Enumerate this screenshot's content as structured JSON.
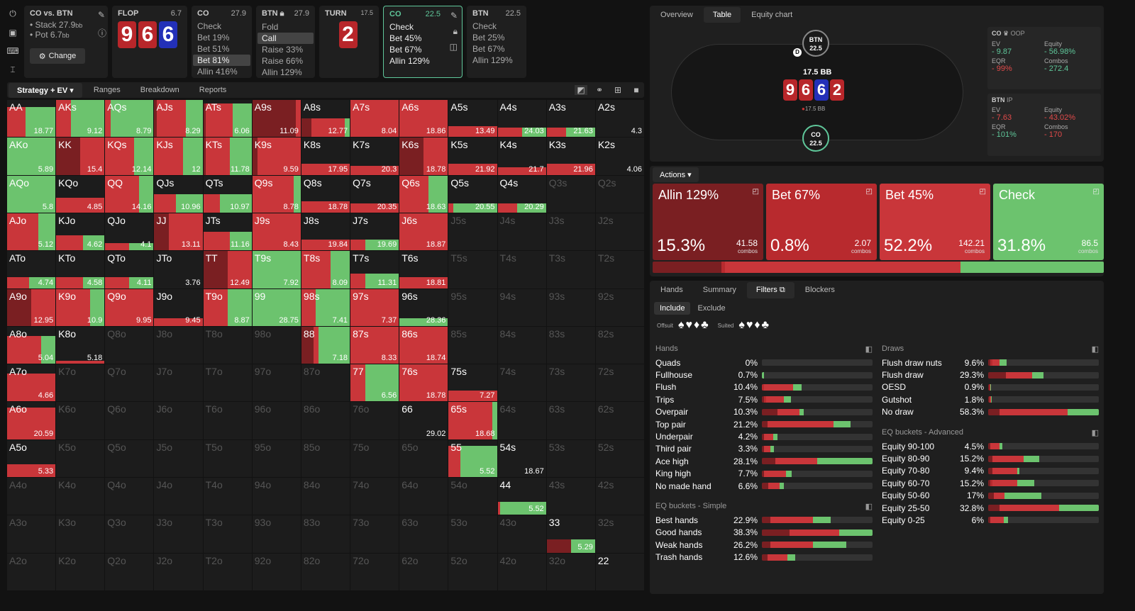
{
  "colors": {
    "red": "#c9363a",
    "darkred": "#7a1f22",
    "green": "#6cc36e",
    "bg": "#1c1c1c"
  },
  "left_tools": [
    "power-icon",
    "save-icon",
    "gamepad-icon",
    "text-cursor-icon"
  ],
  "spot_summary": {
    "title": "CO vs. BTN",
    "stack_label": "Stack",
    "stack": "27.9",
    "pot_label": "Pot",
    "pot": "6.7",
    "bb": "bb",
    "change": "Change"
  },
  "flop": {
    "label": "FLOP",
    "size": "6.7",
    "cards": [
      "9",
      "6",
      "6"
    ]
  },
  "co_flop": {
    "pos": "CO",
    "size": "27.9",
    "lines": [
      "Check",
      "Bet 19%",
      "Bet 51%",
      "Bet 81%",
      "Allin 416%"
    ]
  },
  "btn_flop": {
    "pos": "BTN",
    "size": "27.9",
    "lines": [
      "Fold",
      "Call",
      "Raise 33%",
      "Raise 66%",
      "Allin 129%"
    ]
  },
  "turn": {
    "label": "TURN",
    "size": "17.5",
    "card": "2"
  },
  "co_turn": {
    "pos": "CO",
    "size": "22.5",
    "lines": [
      "Check",
      "Bet 45%",
      "Bet 67%",
      "Allin 129%"
    ]
  },
  "btn_turn": {
    "pos": "BTN",
    "size": "22.5",
    "lines": [
      "Check",
      "Bet 25%",
      "Bet 67%",
      "Allin 129%"
    ]
  },
  "strategy_tabs": [
    "Strategy + EV",
    "Ranges",
    "Breakdown",
    "Reports"
  ],
  "right_tabs": [
    "Overview",
    "Table",
    "Equity chart"
  ],
  "table": {
    "btn": "BTN",
    "btn_stack": "22.5",
    "co": "CO",
    "co_stack": "22.5",
    "pot": "17.5 BB",
    "board": [
      "9",
      "6",
      "6",
      "2"
    ],
    "chips": "17.5 BB",
    "dealer": "D"
  },
  "co_stats": {
    "pos": "CO",
    "role": "OOP",
    "ev_label": "EV",
    "ev": "- 9.87",
    "eq_label": "Equity",
    "eq": "- 56.98%",
    "eqr_label": "EQR",
    "eqr": "- 99%",
    "combos_label": "Combos",
    "combos": "- 272.4"
  },
  "btn_stats": {
    "pos": "BTN",
    "role": "IP",
    "ev_label": "EV",
    "ev": "- 7.63",
    "eq_label": "Equity",
    "eq": "- 43.02%",
    "eqr_label": "EQR",
    "eqr": "- 101%",
    "combos_label": "Combos",
    "combos": "- 170"
  },
  "actions_label": "Actions",
  "actions": [
    {
      "name": "Allin 129%",
      "pct": "15.3%",
      "combos": "41.58",
      "color": "#7a1f22",
      "frac": 0.153
    },
    {
      "name": "Bet 67%",
      "pct": "0.8%",
      "combos": "2.07",
      "color": "#b82a2e",
      "frac": 0.008
    },
    {
      "name": "Bet 45%",
      "pct": "52.2%",
      "combos": "142.21",
      "color": "#c9363a",
      "frac": 0.522
    },
    {
      "name": "Check",
      "pct": "31.8%",
      "combos": "86.5",
      "color": "#6cc36e",
      "frac": 0.318
    }
  ],
  "combos_word": "combos",
  "filter_tabs": [
    "Hands",
    "Summary",
    "Filters",
    "Blockers"
  ],
  "include": "Include",
  "exclude": "Exclude",
  "offsuit": "Offsuit",
  "suited": "Suited",
  "hands_title": "Hands",
  "hands": [
    {
      "l": "Quads",
      "p": "0%",
      "b": [
        0,
        0,
        0,
        0
      ]
    },
    {
      "l": "Fullhouse",
      "p": "0.7%",
      "b": [
        0,
        0,
        0,
        0.02
      ]
    },
    {
      "l": "Flush",
      "p": "10.4%",
      "b": [
        0,
        0.02,
        0.26,
        0.08
      ]
    },
    {
      "l": "Trips",
      "p": "7.5%",
      "b": [
        0.02,
        0.02,
        0.16,
        0.06
      ]
    },
    {
      "l": "Overpair",
      "p": "10.3%",
      "b": [
        0.14,
        0,
        0.2,
        0.04
      ]
    },
    {
      "l": "Top pair",
      "p": "21.2%",
      "b": [
        0.05,
        0,
        0.6,
        0.15
      ]
    },
    {
      "l": "Underpair",
      "p": "4.2%",
      "b": [
        0.02,
        0,
        0.08,
        0.04
      ]
    },
    {
      "l": "Third pair",
      "p": "3.3%",
      "b": [
        0.02,
        0,
        0.06,
        0.03
      ]
    },
    {
      "l": "Ace high",
      "p": "28.1%",
      "b": [
        0.12,
        0,
        0.38,
        0.5
      ]
    },
    {
      "l": "King high",
      "p": "7.7%",
      "b": [
        0.02,
        0,
        0.2,
        0.05
      ]
    },
    {
      "l": "No made hand",
      "p": "6.6%",
      "b": [
        0.06,
        0,
        0.1,
        0.04
      ]
    }
  ],
  "eq_simple_title": "EQ buckets - Simple",
  "eq_simple": [
    {
      "l": "Best hands",
      "p": "22.9%",
      "b": [
        0.08,
        0,
        0.38,
        0.16
      ]
    },
    {
      "l": "Good hands",
      "p": "38.3%",
      "b": [
        0.25,
        0,
        0.45,
        0.3
      ]
    },
    {
      "l": "Weak hands",
      "p": "26.2%",
      "b": [
        0.08,
        0,
        0.38,
        0.3
      ]
    },
    {
      "l": "Trash hands",
      "p": "12.6%",
      "b": [
        0.05,
        0,
        0.18,
        0.07
      ]
    }
  ],
  "draws_title": "Draws",
  "draws": [
    {
      "l": "Flush draw nuts",
      "p": "9.6%",
      "b": [
        0.02,
        0.02,
        0.06,
        0.07
      ]
    },
    {
      "l": "Flush draw",
      "p": "29.3%",
      "b": [
        0.16,
        0,
        0.24,
        0.1
      ]
    },
    {
      "l": "OESD",
      "p": "0.9%",
      "b": [
        0.01,
        0,
        0.01,
        0.005
      ]
    },
    {
      "l": "Gutshot",
      "p": "1.8%",
      "b": [
        0.01,
        0,
        0.015,
        0.005
      ]
    },
    {
      "l": "No draw",
      "p": "58.3%",
      "b": [
        0.1,
        0,
        0.62,
        0.28
      ]
    }
  ],
  "eq_adv_title": "EQ buckets - Advanced",
  "eq_adv": [
    {
      "l": "Equity 90-100",
      "p": "4.5%",
      "b": [
        0.02,
        0,
        0.08,
        0.03
      ]
    },
    {
      "l": "Equity 80-90",
      "p": "15.2%",
      "b": [
        0.04,
        0,
        0.28,
        0.14
      ]
    },
    {
      "l": "Equity 70-80",
      "p": "9.4%",
      "b": [
        0.04,
        0,
        0.22,
        0.02
      ]
    },
    {
      "l": "Equity 60-70",
      "p": "15.2%",
      "b": [
        0.02,
        0.02,
        0.22,
        0.16
      ]
    },
    {
      "l": "Equity 50-60",
      "p": "17%",
      "b": [
        0.05,
        0,
        0.1,
        0.33
      ]
    },
    {
      "l": "Equity 25-50",
      "p": "32.8%",
      "b": [
        0.1,
        0,
        0.54,
        0.36
      ]
    },
    {
      "l": "Equity 0-25",
      "p": "6%",
      "b": [
        0.02,
        0,
        0.12,
        0.04
      ]
    }
  ],
  "grid": [
    [
      "AA|18.77|0,0,0.38,0.62|0.8",
      "AKs|9.12|0,0,0.3,0.7|1",
      "AQs|8.79|0,0,0.12,0.88|1",
      "AJs|8.29|0.05,0,0.6,0.35|1",
      "ATs|6.06|0.05,0,0.55,0.4|0.9",
      "A9s|11.09|0.9,0,0.1,0|1",
      "A8s|12.77|0.2,0,0.7,0.1|0.5",
      "A7s|8.04|0,0,1,0|1",
      "A6s|18.86|0,0,1,0|1",
      "A5s|13.49|0,0,1,0|0.3",
      "A4s|24.03|0,0,0.5,0.5|0.25",
      "A3s|21.63|0,0,0.4,0.6|0.25",
      "A2s|4.3|0,0,0,0|0"
    ],
    [
      "AKo|5.89|0,0,0,1|1",
      "KK|15.4|0.5,0,0.5,0|1",
      "KQs|12.14|0,0,0.6,0.4|1",
      "KJs|12|0,0,0.6,0.4|1",
      "KTs|11.78|0.05,0,0.5,0.45|1",
      "K9s|9.59|0.1,0,0.9,0|1",
      "K8s|17.95|0,0,1,0|0.3",
      "K7s|20.3|0,0,1,0|0.25",
      "K6s|18.78|0.5,0,0.5,0|1",
      "K5s|21.92|0,0,1,0|0.3",
      "K4s|21.7|0,0,1,0|0.2",
      "K3s|21.96|0,0,1,0|0.3",
      "K2s|4.06|0,0,0,0|0"
    ],
    [
      "AQo|5.8|0,0,0,1|1",
      "KQo|4.85|0,0,1,0|0.4",
      "QQ|14.16|0,0,0.7,0.3|1",
      "QJs|10.96|0,0,0.45,0.55|0.5",
      "QTs|10.97|0,0,0.35,0.65|0.5",
      "Q9s|8.78|0,0,0.85,0.15|1",
      "Q8s|18.78|0,0,1,0|0.3",
      "Q7s|20.35|0,0,1,0|0.25",
      "Q6s|18.63|0,0,0.6,0.4|1",
      "Q5s|20.55|0,0,0.1,0.9|0.25",
      "Q4s|20.29|0,0,0.4,0.6|0.25",
      "Q3s|||0|d",
      "Q2s|||0|d"
    ],
    [
      "AJo|5.12|0,0,0.65,0.35|1",
      "KJo|4.62|0,0,0.55,0.45|0.4",
      "QJo|4.1|0,0,0.5,0.5|0.2",
      "JJ|13.11|0.3,0,0.7,0|1",
      "JTs|11.16|0,0,0.55,0.45|0.5",
      "J9s|8.43|0,0,1,0|1",
      "J8s|19.84|0,0,1,0|0.3",
      "J7s|19.69|0,0,0.3,0.7|0.3",
      "J6s|18.87|0,0,1,0|1",
      "J5s|||0|d",
      "J4s|||0|d",
      "J3s|||0|d",
      "J2s|||0|d"
    ],
    [
      "ATo|4.74|0,0,0.45,0.55|0.3",
      "KTo|4.58|0,0,0.55,0.45|0.3",
      "QTo|4.11|0,0,0.5,0.5|0.3",
      "JTo|3.76|0,0,0,0|0",
      "TT|12.49|0.5,0,0.5,0|1",
      "T9s|7.92|0,0,0,1|1",
      "T8s|8.09|0,0,0.6,0.4|1",
      "T7s|11.31|0,0,0.3,0.7|0.4",
      "T6s|18.81|0,0,1,0|0.3",
      "T5s|||0|d",
      "T4s|||0|d",
      "T3s|||0|d",
      "T2s|||0|d"
    ],
    [
      "A9o|12.95|0.5,0,0.5,0|1",
      "K9o|10.9|0,0,0.7,0.3|1",
      "Q9o|9.95|0,0,1,0|1",
      "J9o|9.45|0,0,1,0|0.2",
      "T9o|8.87|0,0,0.5,0.5|1",
      "99|28.75|0,0,0,1|1",
      "98s|7.41|0,0,0.3,0.7|1",
      "97s|7.37|0,0,1,0|1",
      "96s|28.36|0,0,0,1|0.2",
      "95s|||0|d",
      "94s|||0|d",
      "93s|||0|d",
      "92s|||0|d"
    ],
    [
      "A8o|5.04|0,0,0.7,0.3|0.75",
      "K8o|5.18|0,0,1,0|0.08",
      "Q8o|||0|d",
      "J8o|||0|d",
      "T8o|||0|d",
      "98o|||0|d",
      "88|7.18|0.25,0,0.1,0.65|1",
      "87s|8.33|0,0,1,0|1",
      "86s|18.74|0,0,1,0|1",
      "85s|||0|d",
      "84s|||0|d",
      "83s|||0|d",
      "82s|||0|d"
    ],
    [
      "A7o|4.66|0,0,1,0|0.75",
      "K7o|||0|d",
      "Q7o|||0|d",
      "J7o|||0|d",
      "T7o|||0|d",
      "97o|||0|d",
      "87o|||0|d",
      "77|6.56|0,0,0.3,0.7|1",
      "76s|18.78|0,0,1,0|1",
      "75s|7.27|0,0,1,0|0.3",
      "74s|||0|d",
      "73s|||0|d",
      "72s|||0|d"
    ],
    [
      "A6o|20.59|0,0,1,0|0.85",
      "K6o|||0|d",
      "Q6o|||0|d",
      "J6o|||0|d",
      "T6o|||0|d",
      "96o|||0|d",
      "86o|||0|d",
      "76o|||0|d",
      "66|29.02|0,0,0,0|0",
      "65s|18.68|0,0,0.9,0.1|1",
      "64s|||0|d",
      "63s|||0|d",
      "62s|||0|d"
    ],
    [
      "A5o|5.33|0,0,1,0|0.35",
      "K5o|||0|d",
      "Q5o|||0|d",
      "J5o|||0|d",
      "T5o|||0|d",
      "95o|||0|d",
      "85o|||0|d",
      "75o|||0|d",
      "65o|||0|d",
      "55|5.52|0,0,0.25,0.75|0.85",
      "54s|18.67|0,0,0,0|0",
      "53s|||0|d",
      "52s|||0|d"
    ],
    [
      "A4o|||0|d",
      "K4o|||0|d",
      "Q4o|||0|d",
      "J4o|||0|d",
      "T4o|||0|d",
      "94o|||0|d",
      "84o|||0|d",
      "74o|||0|d",
      "64o|||0|d",
      "54o|||0|d",
      "44|5.52|0,0,0.05,0.95|0.35",
      "43s|||0|d",
      "42s|||0|d"
    ],
    [
      "A3o|||0|d",
      "K3o|||0|d",
      "Q3o|||0|d",
      "J3o|||0|d",
      "T3o|||0|d",
      "93o|||0|d",
      "83o|||0|d",
      "73o|||0|d",
      "63o|||0|d",
      "53o|||0|d",
      "43o|||0|d",
      "33|5.29|0.5,0,0,0.5|0.35",
      "32s|||0|d"
    ],
    [
      "A2o|||0|d",
      "K2o|||0|d",
      "Q2o|||0|d",
      "J2o|||0|d",
      "T2o|||0|d",
      "92o|||0|d",
      "82o|||0|d",
      "72o|||0|d",
      "62o|||0|d",
      "52o|||0|d",
      "42o|||0|d",
      "32o|||0|d",
      "22|||0|"
    ]
  ]
}
